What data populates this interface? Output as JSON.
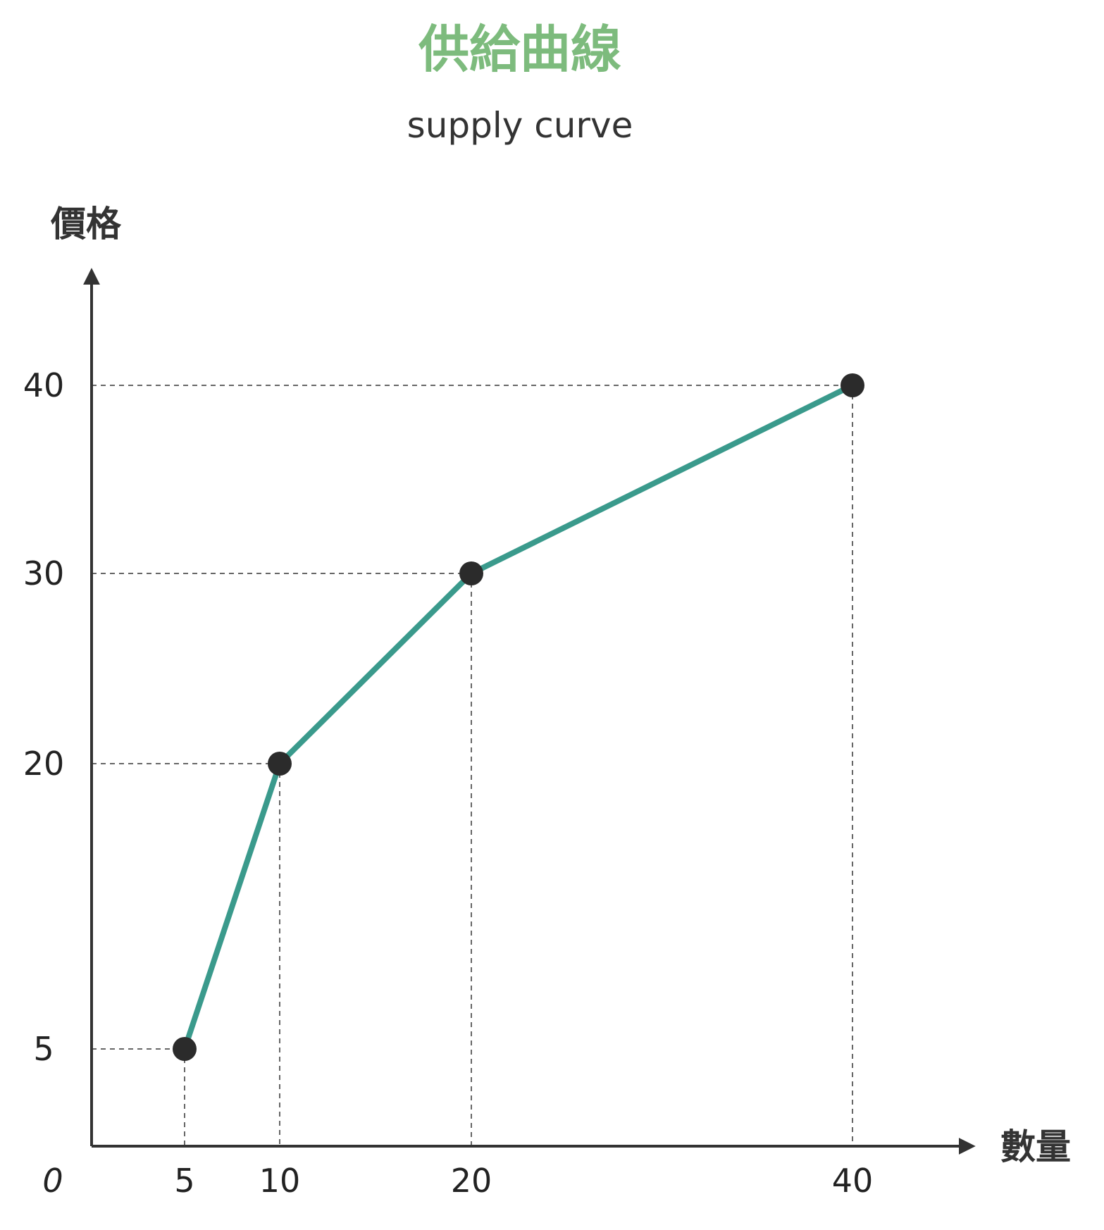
{
  "chart_data": {
    "type": "line",
    "title": "供給曲線",
    "subtitle": "supply curve",
    "xlabel": "數量",
    "ylabel": "價格",
    "origin_label": "0",
    "x_ticks": [
      "5",
      "10",
      "20",
      "40"
    ],
    "y_ticks": [
      "5",
      "20",
      "30",
      "40"
    ],
    "series": [
      {
        "points": [
          {
            "x": 5,
            "y": 5
          },
          {
            "x": 10,
            "y": 20
          },
          {
            "x": 20,
            "y": 30
          },
          {
            "x": 40,
            "y": 40
          }
        ]
      }
    ],
    "colors": {
      "title": "#7dbb7d",
      "line": "#3a9a8c",
      "marker": "#2b2b2b",
      "axis": "#333333",
      "guide": "#333333"
    },
    "grid": false,
    "guide_lines": "dashed"
  }
}
